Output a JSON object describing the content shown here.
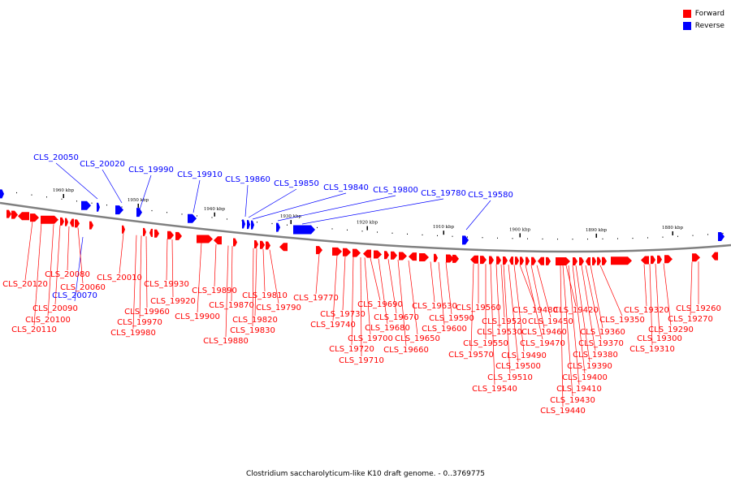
{
  "legend": [
    {
      "label": "Forward",
      "color": "#ff0000"
    },
    {
      "label": "Reverse",
      "color": "#0000ff"
    }
  ],
  "caption": "Clostridium saccharolyticum-like K10 draft genome. - 0..3769775",
  "colors": {
    "forward": "#ff0000",
    "reverse": "#0000ff",
    "backbone": "#808080"
  },
  "scale_ticks": [
    "1960 kbp",
    "1950 kbp",
    "1940 kbp",
    "1930 kbp",
    "1920 kbp",
    "1910 kbp",
    "1900 kbp",
    "1890 kbp",
    "1880 kbp"
  ],
  "reverse_labels": [
    "CLS_20050",
    "CLS_20020",
    "CLS_19990",
    "CLS_19910",
    "CLS_19860",
    "CLS_19850",
    "CLS_19840",
    "CLS_19800",
    "CLS_19780",
    "CLS_19580",
    "CLS_20070"
  ],
  "forward_labels": [
    "CLS_20120",
    "CLS_20110",
    "CLS_20100",
    "CLS_20090",
    "CLS_20080",
    "CLS_20060",
    "CLS_20010",
    "CLS_19980",
    "CLS_19970",
    "CLS_19960",
    "CLS_19930",
    "CLS_19920",
    "CLS_19900",
    "CLS_19890",
    "CLS_19880",
    "CLS_19870",
    "CLS_19830",
    "CLS_19820",
    "CLS_19810",
    "CLS_19790",
    "CLS_19770",
    "CLS_19740",
    "CLS_19730",
    "CLS_19720",
    "CLS_19710",
    "CLS_19700",
    "CLS_19690",
    "CLS_19680",
    "CLS_19670",
    "CLS_19660",
    "CLS_19650",
    "CLS_19630",
    "CLS_19600",
    "CLS_19590",
    "CLS_19570",
    "CLS_19560",
    "CLS_19550",
    "CLS_19540",
    "CLS_19530",
    "CLS_19520",
    "CLS_19510",
    "CLS_19500",
    "CLS_19490",
    "CLS_19480",
    "CLS_19470",
    "CLS_19460",
    "CLS_19450",
    "CLS_19440",
    "CLS_19430",
    "CLS_19420",
    "CLS_19410",
    "CLS_19400",
    "CLS_19390",
    "CLS_19380",
    "CLS_19370",
    "CLS_19360",
    "CLS_19350",
    "CLS_19320",
    "CLS_19310",
    "CLS_19300",
    "CLS_19290",
    "CLS_19270",
    "CLS_19260"
  ]
}
